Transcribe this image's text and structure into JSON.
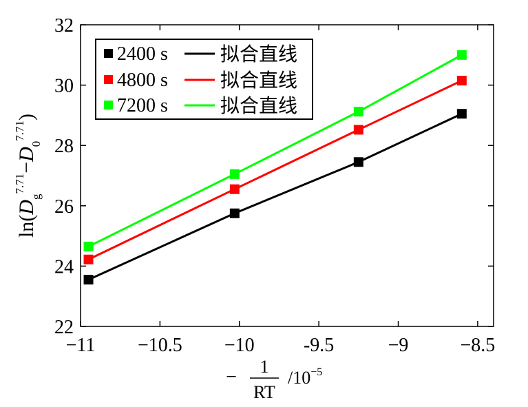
{
  "chart_data": {
    "type": "line",
    "x": [
      -10.95,
      -10.03,
      -9.25,
      -8.6
    ],
    "series": [
      {
        "name": "2400 s",
        "fit_label": "拟合直线",
        "color": "#000000",
        "values": [
          23.55,
          25.75,
          27.45,
          29.05
        ]
      },
      {
        "name": "4800 s",
        "fit_label": "拟合直线",
        "color": "#ff0000",
        "values": [
          24.22,
          26.55,
          28.52,
          30.15
        ]
      },
      {
        "name": "7200 s",
        "fit_label": "拟合直线",
        "color": "#00ff00",
        "values": [
          24.65,
          27.05,
          29.12,
          31.0
        ]
      }
    ],
    "xlim": [
      -11.0,
      -8.4
    ],
    "ylim": [
      22,
      32
    ],
    "xticks": [
      -11,
      -10.5,
      -10,
      -9.5,
      -9,
      -8.5
    ],
    "xtick_labels": [
      "−11",
      "−10.5",
      "−10",
      "-9.5",
      "−9",
      "−8.5"
    ],
    "yticks": [
      22,
      24,
      26,
      28,
      30,
      32
    ],
    "ytick_labels": [
      "22",
      "24",
      "26",
      "28",
      "30",
      "32"
    ],
    "xlabel": {
      "minus": "−",
      "numerator": "1",
      "denominator": "RT",
      "unit": "/10",
      "exponent": "−5"
    },
    "ylabel": {
      "prefix": "ln(",
      "d1": "D",
      "sub1": "g",
      "sup1": "7.71",
      "minus": "−",
      "d2": "D",
      "sub2": "0",
      "sup2": "7.71",
      "suffix": ")"
    },
    "legend_position": "top-left",
    "grid": false
  }
}
